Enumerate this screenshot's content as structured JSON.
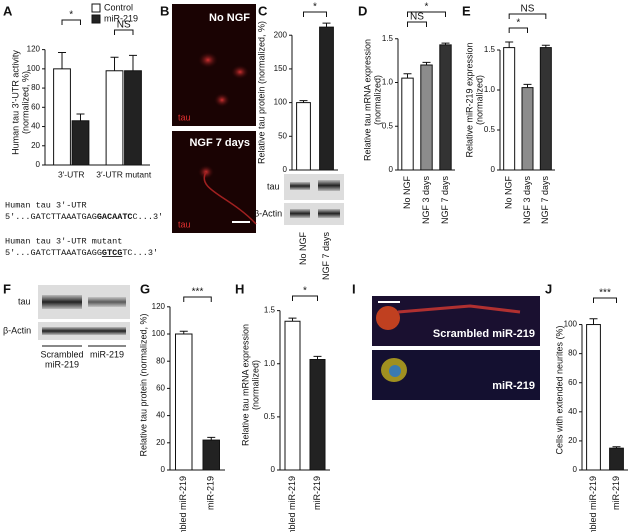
{
  "panels": {
    "B": {
      "panel": "B",
      "top": "No NGF",
      "top_stain": "tau",
      "bottom": "NGF 7 days",
      "bottom_stain": "tau"
    },
    "F": {
      "panel": "F",
      "rows": [
        "tau",
        "β-Actin"
      ],
      "lanes": [
        [
          "Scrambled",
          "miR-219"
        ],
        [
          "miR-219"
        ]
      ]
    },
    "I": {
      "panel": "I",
      "top": "Scrambled miR-219",
      "bottom": "miR-219"
    },
    "C_blot": {
      "rows": [
        "tau",
        "β-Actin"
      ]
    },
    "sequences": {
      "wt_title": "Human tau 3′-UTR",
      "wt": [
        "5′...GATCTTAAATGAG",
        "GACAATC",
        "C...3′"
      ],
      "mut_title": "Human tau 3′-UTR mutant",
      "mut": [
        "5′...GATCTTAAATGAGG",
        "GTCG",
        "TC...3′"
      ]
    }
  },
  "chart_data": [
    {
      "type": "grouped-bar",
      "panel": "A",
      "ylabel": [
        "Human tau 3′-UTR activity",
        "(normalized, %)"
      ],
      "categories": [
        "3′-UTR",
        "3′-UTR mutant"
      ],
      "series": [
        {
          "name": "Control",
          "color": "#ffffff",
          "values": [
            100,
            98
          ],
          "errors": [
            17,
            14
          ]
        },
        {
          "name": "miR-219",
          "color": "#222222",
          "values": [
            46,
            98
          ],
          "errors": [
            7,
            16
          ]
        }
      ],
      "ylim": [
        0,
        130
      ],
      "yticks": [
        0,
        20,
        40,
        60,
        80,
        100,
        120
      ],
      "significance": [
        "*",
        "NS"
      ]
    },
    {
      "type": "bar",
      "panel": "C",
      "ylabel": [
        "Relative tau protein (normalized, %)"
      ],
      "categories": [
        "No NGF",
        "NGF 7 days"
      ],
      "values": [
        100,
        212
      ],
      "errors": [
        3,
        6
      ],
      "colors": [
        "#ffffff",
        "#222222"
      ],
      "ylim": [
        0,
        230
      ],
      "yticks": [
        0,
        50,
        100,
        150,
        200
      ],
      "significance": [
        "*"
      ]
    },
    {
      "type": "bar",
      "panel": "D",
      "ylabel": [
        "Relative tau mRNA expression",
        "(normalized)"
      ],
      "categories": [
        "No NGF",
        "NGF 3 days",
        "NGF 7 days"
      ],
      "values": [
        1.05,
        1.2,
        1.43
      ],
      "errors": [
        0.05,
        0.03,
        0.02
      ],
      "colors": [
        "#ffffff",
        "#8c8c8c",
        "#333333"
      ],
      "ylim": [
        0,
        1.6
      ],
      "yticks": [
        0,
        0.5,
        {
          "value": 1,
          "label": "1.0"
        },
        1.5
      ],
      "significance": [
        "NS",
        "*"
      ]
    },
    {
      "type": "bar",
      "panel": "E",
      "ylabel": [
        "Relative miR-219 expression",
        "(normalized)"
      ],
      "categories": [
        "No NGF",
        "NGF 3 days",
        "NGF 7 days"
      ],
      "values": [
        1.53,
        1.03,
        1.53
      ],
      "errors": [
        0.07,
        0.04,
        0.03
      ],
      "colors": [
        "#ffffff",
        "#8c8c8c",
        "#333333"
      ],
      "ylim": [
        0,
        1.75
      ],
      "yticks": [
        0,
        0.5,
        {
          "value": 1,
          "label": "1.0"
        },
        1.5
      ],
      "significance": [
        "*",
        "NS"
      ]
    },
    {
      "type": "bar",
      "panel": "G",
      "ylabel": [
        "Relative tau protein (normalized, %)"
      ],
      "categories": [
        "Scrambled miR-219",
        "miR-219"
      ],
      "values": [
        100,
        22
      ],
      "errors": [
        2,
        2
      ],
      "colors": [
        "#ffffff",
        "#222222"
      ],
      "ylim": [
        0,
        125
      ],
      "yticks": [
        0,
        20,
        40,
        60,
        80,
        100,
        120
      ],
      "significance": [
        "***"
      ]
    },
    {
      "type": "bar",
      "panel": "H",
      "ylabel": [
        "Relative tau mRNA expression",
        "(normalized)"
      ],
      "categories": [
        "Scrambled miR-219",
        "miR-219"
      ],
      "values": [
        1.4,
        1.04
      ],
      "errors": [
        0.03,
        0.03
      ],
      "colors": [
        "#ffffff",
        "#222222"
      ],
      "ylim": [
        0,
        1.6
      ],
      "yticks": [
        0,
        0.5,
        {
          "value": 1,
          "label": "1.0"
        },
        1.5
      ],
      "significance": [
        "*"
      ]
    },
    {
      "type": "bar",
      "panel": "J",
      "ylabel": [
        "Cells with extended neurites (%)"
      ],
      "categories": [
        "Scrambled miR-219",
        "miR-219"
      ],
      "values": [
        100,
        15
      ],
      "errors": [
        4,
        1
      ],
      "colors": [
        "#ffffff",
        "#222222"
      ],
      "ylim": [
        0,
        110
      ],
      "yticks": [
        0,
        20,
        40,
        60,
        80,
        100
      ],
      "significance": [
        "***"
      ]
    }
  ]
}
